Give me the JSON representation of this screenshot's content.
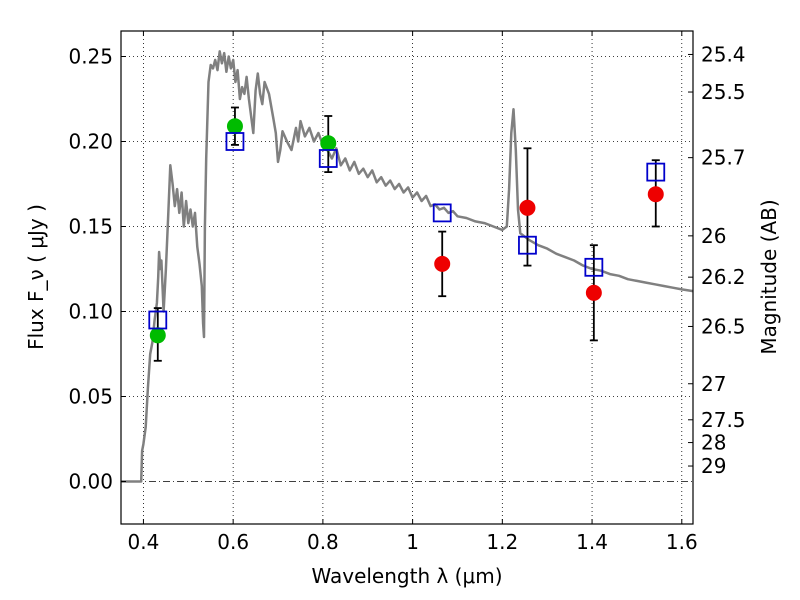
{
  "chart_data": {
    "type": "scatter",
    "title": "",
    "xlabel": "Wavelength  λ (μm)",
    "ylabel": "Flux  F_ν  ( μJy )",
    "ylabel_right": "Magnitude (AB)",
    "xlim": [
      0.35,
      1.625
    ],
    "ylim": [
      -0.025,
      0.265
    ],
    "grid": true,
    "x_ticks": [
      0.4,
      0.6,
      0.8,
      1.0,
      1.2,
      1.4,
      1.6
    ],
    "x_tick_labels": [
      "0.4",
      "0.6",
      "0.8",
      "1",
      "1.2",
      "1.4",
      "1.6"
    ],
    "y_ticks": [
      0.0,
      0.05,
      0.1,
      0.15,
      0.2,
      0.25
    ],
    "y_tick_labels": [
      "0.00",
      "0.05",
      "0.10",
      "0.15",
      "0.20",
      "0.25"
    ],
    "mag_ticks": [
      {
        "label": "25.4",
        "flux": 0.2512
      },
      {
        "label": "25.5",
        "flux": 0.2291
      },
      {
        "label": "25.7",
        "flux": 0.1905
      },
      {
        "label": "26",
        "flux": 0.1445
      },
      {
        "label": "26.2",
        "flux": 0.1202
      },
      {
        "label": "26.5",
        "flux": 0.0912
      },
      {
        "label": "27",
        "flux": 0.0575
      },
      {
        "label": "27.5",
        "flux": 0.0363
      },
      {
        "label": "28",
        "flux": 0.0229
      },
      {
        "label": "29",
        "flux": 0.0091
      }
    ],
    "series": [
      {
        "kind": "line",
        "color": "#808080",
        "points": [
          [
            0.35,
            0.0
          ],
          [
            0.39,
            0.0
          ],
          [
            0.395,
            0.0
          ],
          [
            0.397,
            0.018
          ],
          [
            0.4,
            0.022
          ],
          [
            0.405,
            0.032
          ],
          [
            0.41,
            0.055
          ],
          [
            0.415,
            0.075
          ],
          [
            0.42,
            0.082
          ],
          [
            0.425,
            0.095
          ],
          [
            0.43,
            0.105
          ],
          [
            0.433,
            0.12
          ],
          [
            0.435,
            0.135
          ],
          [
            0.438,
            0.125
          ],
          [
            0.44,
            0.13
          ],
          [
            0.445,
            0.1
          ],
          [
            0.45,
            0.125
          ],
          [
            0.455,
            0.155
          ],
          [
            0.46,
            0.186
          ],
          [
            0.465,
            0.175
          ],
          [
            0.47,
            0.162
          ],
          [
            0.475,
            0.172
          ],
          [
            0.48,
            0.158
          ],
          [
            0.485,
            0.17
          ],
          [
            0.49,
            0.15
          ],
          [
            0.495,
            0.165
          ],
          [
            0.5,
            0.152
          ],
          [
            0.505,
            0.16
          ],
          [
            0.51,
            0.15
          ],
          [
            0.515,
            0.158
          ],
          [
            0.52,
            0.138
          ],
          [
            0.525,
            0.128
          ],
          [
            0.53,
            0.115
          ],
          [
            0.533,
            0.093
          ],
          [
            0.535,
            0.085
          ],
          [
            0.537,
            0.15
          ],
          [
            0.54,
            0.19
          ],
          [
            0.545,
            0.235
          ],
          [
            0.55,
            0.245
          ],
          [
            0.555,
            0.243
          ],
          [
            0.56,
            0.248
          ],
          [
            0.565,
            0.242
          ],
          [
            0.57,
            0.253
          ],
          [
            0.575,
            0.246
          ],
          [
            0.58,
            0.252
          ],
          [
            0.585,
            0.241
          ],
          [
            0.59,
            0.25
          ],
          [
            0.595,
            0.243
          ],
          [
            0.6,
            0.248
          ],
          [
            0.605,
            0.235
          ],
          [
            0.61,
            0.242
          ],
          [
            0.615,
            0.225
          ],
          [
            0.62,
            0.232
          ],
          [
            0.625,
            0.228
          ],
          [
            0.63,
            0.238
          ],
          [
            0.635,
            0.225
          ],
          [
            0.64,
            0.215
          ],
          [
            0.645,
            0.205
          ],
          [
            0.65,
            0.23
          ],
          [
            0.655,
            0.24
          ],
          [
            0.66,
            0.228
          ],
          [
            0.665,
            0.222
          ],
          [
            0.67,
            0.235
          ],
          [
            0.68,
            0.228
          ],
          [
            0.69,
            0.213
          ],
          [
            0.695,
            0.205
          ],
          [
            0.7,
            0.188
          ],
          [
            0.705,
            0.195
          ],
          [
            0.71,
            0.206
          ],
          [
            0.72,
            0.2
          ],
          [
            0.73,
            0.195
          ],
          [
            0.74,
            0.208
          ],
          [
            0.745,
            0.2
          ],
          [
            0.75,
            0.212
          ],
          [
            0.76,
            0.203
          ],
          [
            0.77,
            0.208
          ],
          [
            0.78,
            0.2
          ],
          [
            0.79,
            0.205
          ],
          [
            0.8,
            0.198
          ],
          [
            0.81,
            0.195
          ],
          [
            0.82,
            0.19
          ],
          [
            0.83,
            0.196
          ],
          [
            0.84,
            0.186
          ],
          [
            0.85,
            0.19
          ],
          [
            0.86,
            0.183
          ],
          [
            0.87,
            0.188
          ],
          [
            0.88,
            0.181
          ],
          [
            0.89,
            0.184
          ],
          [
            0.9,
            0.179
          ],
          [
            0.91,
            0.183
          ],
          [
            0.92,
            0.176
          ],
          [
            0.93,
            0.179
          ],
          [
            0.94,
            0.174
          ],
          [
            0.95,
            0.177
          ],
          [
            0.96,
            0.172
          ],
          [
            0.97,
            0.175
          ],
          [
            0.98,
            0.17
          ],
          [
            0.99,
            0.173
          ],
          [
            1.0,
            0.167
          ],
          [
            1.01,
            0.17
          ],
          [
            1.02,
            0.165
          ],
          [
            1.03,
            0.168
          ],
          [
            1.04,
            0.162
          ],
          [
            1.05,
            0.163
          ],
          [
            1.06,
            0.16
          ],
          [
            1.07,
            0.161
          ],
          [
            1.08,
            0.158
          ],
          [
            1.09,
            0.159
          ],
          [
            1.1,
            0.156
          ],
          [
            1.12,
            0.155
          ],
          [
            1.14,
            0.153
          ],
          [
            1.16,
            0.152
          ],
          [
            1.18,
            0.15
          ],
          [
            1.2,
            0.148
          ],
          [
            1.21,
            0.15
          ],
          [
            1.215,
            0.172
          ],
          [
            1.22,
            0.205
          ],
          [
            1.225,
            0.219
          ],
          [
            1.23,
            0.195
          ],
          [
            1.235,
            0.16
          ],
          [
            1.24,
            0.146
          ],
          [
            1.26,
            0.142
          ],
          [
            1.28,
            0.139
          ],
          [
            1.3,
            0.137
          ],
          [
            1.32,
            0.134
          ],
          [
            1.34,
            0.132
          ],
          [
            1.36,
            0.13
          ],
          [
            1.38,
            0.127
          ],
          [
            1.4,
            0.125
          ],
          [
            1.42,
            0.124
          ],
          [
            1.44,
            0.122
          ],
          [
            1.46,
            0.121
          ],
          [
            1.48,
            0.119
          ],
          [
            1.5,
            0.118
          ],
          [
            1.52,
            0.117
          ],
          [
            1.54,
            0.116
          ],
          [
            1.56,
            0.115
          ],
          [
            1.58,
            0.114
          ],
          [
            1.6,
            0.113
          ],
          [
            1.625,
            0.112
          ]
        ]
      },
      {
        "kind": "scatter",
        "marker": "circle",
        "color": "#00bb00",
        "points": [
          [
            0.432,
            0.086
          ],
          [
            0.604,
            0.209
          ],
          [
            0.812,
            0.199
          ]
        ]
      },
      {
        "kind": "scatter",
        "marker": "circle",
        "color": "#ee0000",
        "points": [
          [
            1.066,
            0.128
          ],
          [
            1.256,
            0.161
          ],
          [
            1.404,
            0.111
          ],
          [
            1.542,
            0.169
          ]
        ]
      },
      {
        "kind": "scatter",
        "marker": "square",
        "color": "#0000cc",
        "points": [
          [
            0.432,
            0.095
          ],
          [
            0.604,
            0.2
          ],
          [
            0.812,
            0.19
          ],
          [
            1.066,
            0.158
          ],
          [
            1.256,
            0.139
          ],
          [
            1.404,
            0.126
          ],
          [
            1.542,
            0.182
          ]
        ]
      }
    ],
    "error_bars": [
      {
        "x": 0.432,
        "y": 0.086,
        "lo": 0.071,
        "hi": 0.102
      },
      {
        "x": 0.604,
        "y": 0.209,
        "lo": 0.198,
        "hi": 0.22
      },
      {
        "x": 0.812,
        "y": 0.199,
        "lo": 0.182,
        "hi": 0.215
      },
      {
        "x": 1.066,
        "y": 0.128,
        "lo": 0.109,
        "hi": 0.147
      },
      {
        "x": 1.256,
        "y": 0.161,
        "lo": 0.127,
        "hi": 0.196
      },
      {
        "x": 1.404,
        "y": 0.111,
        "lo": 0.083,
        "hi": 0.139
      },
      {
        "x": 1.542,
        "y": 0.169,
        "lo": 0.15,
        "hi": 0.189
      }
    ]
  }
}
